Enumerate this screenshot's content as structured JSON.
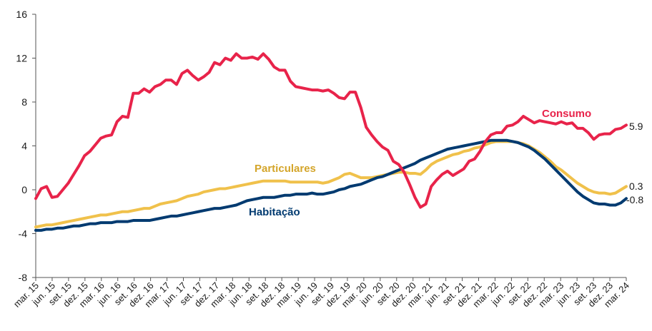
{
  "chart_data": {
    "type": "line",
    "ylim": [
      -8,
      16
    ],
    "yticks": [
      "16",
      "12",
      "8",
      "4",
      "0",
      "-4",
      "-8"
    ],
    "grid": false,
    "x_tick_labels": [
      "mar. 15",
      "jun. 15",
      "set. 15",
      "dez. 15",
      "mar. 16",
      "jun. 16",
      "set. 16",
      "dez. 16",
      "mar. 17",
      "jun. 17",
      "set. 17",
      "dez. 17",
      "mar. 18",
      "jun. 18",
      "set. 18",
      "dez. 18",
      "mar. 19",
      "jun. 19",
      "set. 19",
      "dez. 19",
      "mar. 20",
      "jun. 20",
      "set. 20",
      "dez. 20",
      "mar. 21",
      "jun. 21",
      "set. 21",
      "dez. 21",
      "mar. 22",
      "jun. 22",
      "set. 22",
      "dez. 22",
      "mar. 23",
      "jun. 23",
      "set. 23",
      "dez. 23",
      "mar. 24"
    ],
    "series": [
      {
        "name": "Consumo",
        "color": "#e8234a",
        "end_label": "5.9",
        "values": [
          -0.8,
          0.1,
          0.3,
          -0.7,
          -0.6,
          0.0,
          0.6,
          1.4,
          2.2,
          3.1,
          3.5,
          4.1,
          4.7,
          4.9,
          5.0,
          6.2,
          6.7,
          6.6,
          8.8,
          8.8,
          9.2,
          8.9,
          9.4,
          9.6,
          10.0,
          10.0,
          9.6,
          10.6,
          10.9,
          10.4,
          10.0,
          10.3,
          10.7,
          11.6,
          11.4,
          12.0,
          11.8,
          12.4,
          12.0,
          12.0,
          12.1,
          11.9,
          12.4,
          11.9,
          11.2,
          10.9,
          10.9,
          9.9,
          9.4,
          9.3,
          9.2,
          9.1,
          9.1,
          9.0,
          9.1,
          8.8,
          8.4,
          8.3,
          8.9,
          8.9,
          7.5,
          5.7,
          5.0,
          4.4,
          3.9,
          3.6,
          2.6,
          2.3,
          1.6,
          0.5,
          -0.7,
          -1.6,
          -1.3,
          0.3,
          0.9,
          1.4,
          1.7,
          1.3,
          1.6,
          1.9,
          2.6,
          2.8,
          3.5,
          4.4,
          5.0,
          5.2,
          5.2,
          5.8,
          5.9,
          6.2,
          6.7,
          6.4,
          6.1,
          6.3,
          6.2,
          6.1,
          6.0,
          6.2,
          6.0,
          6.1,
          5.6,
          5.6,
          5.2,
          4.6,
          5.0,
          5.1,
          5.1,
          5.5,
          5.6,
          5.9
        ]
      },
      {
        "name": "Particulares",
        "color": "#f0c14b",
        "end_label": "0.3",
        "values": [
          -3.4,
          -3.3,
          -3.2,
          -3.2,
          -3.1,
          -3.0,
          -2.9,
          -2.8,
          -2.7,
          -2.6,
          -2.5,
          -2.4,
          -2.3,
          -2.3,
          -2.2,
          -2.1,
          -2.0,
          -2.0,
          -1.9,
          -1.8,
          -1.7,
          -1.7,
          -1.5,
          -1.3,
          -1.2,
          -1.1,
          -1.0,
          -0.8,
          -0.6,
          -0.5,
          -0.4,
          -0.2,
          -0.1,
          0.0,
          0.1,
          0.1,
          0.2,
          0.3,
          0.4,
          0.5,
          0.6,
          0.7,
          0.8,
          0.8,
          0.8,
          0.8,
          0.8,
          0.7,
          0.7,
          0.7,
          0.7,
          0.7,
          0.7,
          0.6,
          0.7,
          0.9,
          1.1,
          1.4,
          1.5,
          1.3,
          1.1,
          1.1,
          1.1,
          1.2,
          1.3,
          1.4,
          1.5,
          1.6,
          1.6,
          1.5,
          1.5,
          1.4,
          1.8,
          2.3,
          2.6,
          2.8,
          3.0,
          3.2,
          3.3,
          3.5,
          3.6,
          3.8,
          3.9,
          4.1,
          4.3,
          4.4,
          4.4,
          4.4,
          4.4,
          4.3,
          4.2,
          4.0,
          3.7,
          3.4,
          3.0,
          2.6,
          2.1,
          1.8,
          1.4,
          1.0,
          0.6,
          0.3,
          0.0,
          -0.2,
          -0.3,
          -0.3,
          -0.4,
          -0.3,
          0.0,
          0.3
        ]
      },
      {
        "name": "Habitação",
        "color": "#003a70",
        "end_label": "-0.8",
        "values": [
          -3.7,
          -3.7,
          -3.6,
          -3.6,
          -3.5,
          -3.5,
          -3.4,
          -3.3,
          -3.3,
          -3.2,
          -3.1,
          -3.1,
          -3.0,
          -3.0,
          -3.0,
          -2.9,
          -2.9,
          -2.9,
          -2.8,
          -2.8,
          -2.8,
          -2.8,
          -2.7,
          -2.6,
          -2.5,
          -2.4,
          -2.4,
          -2.3,
          -2.2,
          -2.1,
          -2.0,
          -1.9,
          -1.8,
          -1.7,
          -1.7,
          -1.6,
          -1.5,
          -1.4,
          -1.2,
          -1.0,
          -0.9,
          -0.8,
          -0.7,
          -0.7,
          -0.7,
          -0.6,
          -0.5,
          -0.5,
          -0.4,
          -0.4,
          -0.4,
          -0.3,
          -0.4,
          -0.4,
          -0.3,
          -0.2,
          0.0,
          0.1,
          0.3,
          0.4,
          0.5,
          0.7,
          0.9,
          1.1,
          1.2,
          1.4,
          1.6,
          1.8,
          2.0,
          2.2,
          2.4,
          2.7,
          2.9,
          3.1,
          3.3,
          3.5,
          3.7,
          3.8,
          3.9,
          4.0,
          4.1,
          4.2,
          4.3,
          4.4,
          4.5,
          4.5,
          4.5,
          4.5,
          4.4,
          4.3,
          4.1,
          3.9,
          3.6,
          3.2,
          2.8,
          2.3,
          1.8,
          1.3,
          0.8,
          0.3,
          -0.2,
          -0.6,
          -0.9,
          -1.2,
          -1.3,
          -1.3,
          -1.4,
          -1.4,
          -1.2,
          -0.8
        ]
      }
    ]
  }
}
